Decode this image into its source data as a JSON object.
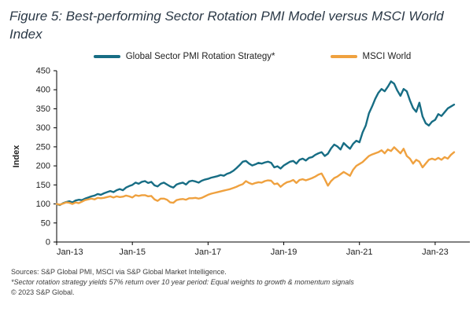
{
  "figure": {
    "title": "Figure 5: Best-performing Sector Rotation PMI Model versus MSCI World Index"
  },
  "legend": [
    {
      "label": "Global Sector PMI Rotation Strategy*",
      "color": "#176D84"
    },
    {
      "label": "MSCI World",
      "color": "#EFA13F"
    }
  ],
  "footnotes": {
    "line1": "Sources: S&P Global PMI, MSCI via S&P Global Market Intelligence.",
    "line2": "*Sector rotation strategy yields 57% return over 10 year period: Equal weights to growth & momentum signals",
    "line3": "© 2023 S&P Global."
  },
  "chart_data": {
    "type": "line",
    "title": "Figure 5: Best-performing Sector Rotation PMI Model versus MSCI World Index",
    "xlabel": "",
    "ylabel": "Index",
    "ylim": [
      0,
      450
    ],
    "ytick_step": 50,
    "grid": false,
    "legend_position": "top",
    "x_frequency": "monthly",
    "x_start": "Jan-13",
    "x_domain_months": 132,
    "xtick_labels": [
      "Jan-13",
      "Jan-15",
      "Jan-17",
      "Jan-19",
      "Jan-21",
      "Jan-23"
    ],
    "xtick_indices": [
      0,
      24,
      48,
      72,
      96,
      120
    ],
    "series": [
      {
        "name": "Global Sector PMI Rotation Strategy*",
        "color": "#176D84",
        "values": [
          100,
          97,
          102,
          105,
          107,
          104,
          109,
          111,
          110,
          114,
          117,
          120,
          122,
          126,
          124,
          128,
          131,
          134,
          131,
          136,
          139,
          136,
          143,
          147,
          150,
          156,
          153,
          158,
          160,
          155,
          158,
          149,
          146,
          153,
          156,
          151,
          146,
          143,
          151,
          154,
          156,
          151,
          159,
          161,
          159,
          156,
          161,
          164,
          166,
          169,
          171,
          173,
          176,
          174,
          179,
          182,
          187,
          194,
          202,
          211,
          213,
          206,
          201,
          204,
          208,
          206,
          209,
          211,
          208,
          196,
          199,
          193,
          201,
          206,
          211,
          213,
          206,
          216,
          219,
          214,
          221,
          223,
          229,
          233,
          236,
          226,
          232,
          246,
          256,
          251,
          243,
          260,
          252,
          245,
          258,
          266,
          262,
          288,
          306,
          338,
          356,
          376,
          392,
          402,
          396,
          408,
          422,
          416,
          398,
          384,
          402,
          396,
          372,
          352,
          342,
          366,
          330,
          312,
          306,
          316,
          321,
          336,
          331,
          341,
          351,
          356,
          361
        ]
      },
      {
        "name": "MSCI World",
        "color": "#EFA13F",
        "values": [
          100,
          98,
          101,
          104,
          103,
          100,
          104,
          102,
          106,
          110,
          112,
          114,
          112,
          116,
          115,
          116,
          118,
          120,
          117,
          120,
          118,
          119,
          122,
          120,
          117,
          123,
          121,
          123,
          123,
          120,
          121,
          112,
          108,
          114,
          114,
          111,
          104,
          103,
          110,
          112,
          113,
          111,
          115,
          115,
          116,
          114,
          116,
          120,
          124,
          127,
          129,
          131,
          133,
          135,
          137,
          139,
          142,
          145,
          149,
          152,
          160,
          155,
          152,
          155,
          157,
          156,
          160,
          162,
          161,
          152,
          154,
          145,
          152,
          157,
          159,
          163,
          155,
          163,
          165,
          162,
          165,
          168,
          172,
          177,
          180,
          165,
          148,
          160,
          168,
          172,
          178,
          184,
          179,
          174,
          190,
          200,
          205,
          210,
          218,
          226,
          230,
          233,
          236,
          241,
          233,
          243,
          239,
          249,
          241,
          233,
          245,
          226,
          219,
          206,
          216,
          211,
          196,
          206,
          216,
          219,
          216,
          221,
          216,
          223,
          219,
          229,
          236
        ]
      }
    ]
  }
}
